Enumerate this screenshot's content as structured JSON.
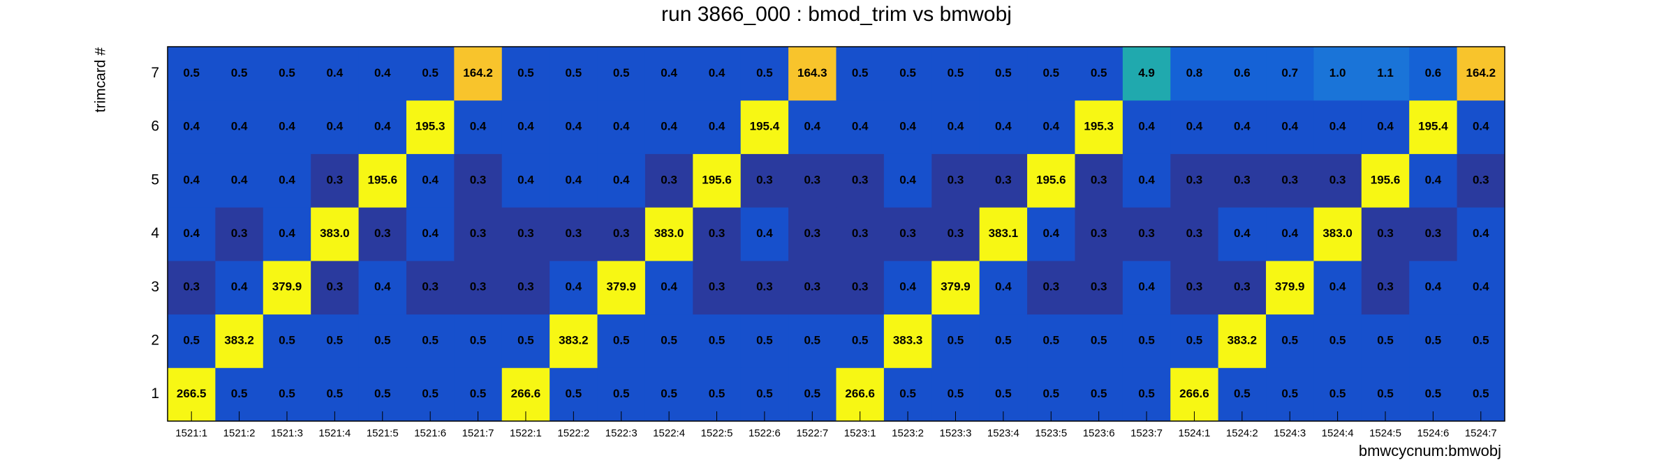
{
  "chart_data": {
    "type": "heatmap",
    "title": "run 3866_000 : bmod_trim vs bmwobj",
    "x_label": "bmwcycnum:bmwobj",
    "y_label": "trimcard #",
    "log_color": true,
    "colorscale": [
      [
        0,
        "#2a3a9e"
      ],
      [
        0.03,
        "#1750cc"
      ],
      [
        0.09,
        "#1562d6"
      ],
      [
        0.15,
        "#1a74d8"
      ],
      [
        0.3,
        "#20a9ae"
      ],
      [
        0.8,
        "#f8c42c"
      ],
      [
        0.89,
        "#f7f714"
      ]
    ],
    "categories": [
      "1521:1",
      "1521:2",
      "1521:3",
      "1521:4",
      "1521:5",
      "1521:6",
      "1521:7",
      "1522:1",
      "1522:2",
      "1522:3",
      "1522:4",
      "1522:5",
      "1522:6",
      "1522:7",
      "1523:1",
      "1523:2",
      "1523:3",
      "1523:4",
      "1523:5",
      "1523:6",
      "1523:7",
      "1524:1",
      "1524:2",
      "1524:3",
      "1524:4",
      "1524:5",
      "1524:6",
      "1524:7"
    ],
    "series": [
      {
        "name": "1",
        "values": [
          266.5,
          0.5,
          0.5,
          0.5,
          0.5,
          0.5,
          0.5,
          266.6,
          0.5,
          0.5,
          0.5,
          0.5,
          0.5,
          0.5,
          266.6,
          0.5,
          0.5,
          0.5,
          0.5,
          0.5,
          0.5,
          266.6,
          0.5,
          0.5,
          0.5,
          0.5,
          0.5,
          0.5
        ]
      },
      {
        "name": "2",
        "values": [
          0.5,
          383.2,
          0.5,
          0.5,
          0.5,
          0.5,
          0.5,
          0.5,
          383.2,
          0.5,
          0.5,
          0.5,
          0.5,
          0.5,
          0.5,
          383.3,
          0.5,
          0.5,
          0.5,
          0.5,
          0.5,
          0.5,
          383.2,
          0.5,
          0.5,
          0.5,
          0.5,
          0.5
        ]
      },
      {
        "name": "3",
        "values": [
          0.3,
          0.4,
          379.9,
          0.3,
          0.4,
          0.3,
          0.3,
          0.3,
          0.4,
          379.9,
          0.4,
          0.3,
          0.3,
          0.3,
          0.3,
          0.4,
          379.9,
          0.4,
          0.3,
          0.3,
          0.4,
          0.3,
          0.3,
          379.9,
          0.4,
          0.3,
          0.4,
          0.4
        ]
      },
      {
        "name": "4",
        "values": [
          0.4,
          0.3,
          0.4,
          383,
          0.3,
          0.4,
          0.3,
          0.3,
          0.3,
          0.3,
          383,
          0.3,
          0.4,
          0.3,
          0.3,
          0.3,
          0.3,
          383.1,
          0.4,
          0.3,
          0.3,
          0.3,
          0.4,
          0.4,
          383,
          0.3,
          0.3,
          0.4
        ],
        "value_labels": [
          "0.4",
          "0.3",
          "0.4",
          "383.0",
          "0.3",
          "0.4",
          "0.3",
          "0.3",
          "0.3",
          "0.3",
          "383.0",
          "0.3",
          "0.4",
          "0.3",
          "0.3",
          "0.3",
          "0.3",
          "383.1",
          "0.4",
          "0.3",
          "0.3",
          "0.3",
          "0.4",
          "0.4",
          "383.0",
          "0.3",
          "0.3",
          "0.4"
        ]
      },
      {
        "name": "5",
        "values": [
          0.4,
          0.4,
          0.4,
          0.3,
          195.6,
          0.4,
          0.3,
          0.4,
          0.4,
          0.4,
          0.3,
          195.6,
          0.3,
          0.3,
          0.3,
          0.4,
          0.3,
          0.3,
          195.6,
          0.3,
          0.4,
          0.3,
          0.3,
          0.3,
          0.3,
          195.6,
          0.4,
          0.3
        ]
      },
      {
        "name": "6",
        "values": [
          0.4,
          0.4,
          0.4,
          0.4,
          0.4,
          195.3,
          0.4,
          0.4,
          0.4,
          0.4,
          0.4,
          0.4,
          195.4,
          0.4,
          0.4,
          0.4,
          0.4,
          0.4,
          0.4,
          195.3,
          0.4,
          0.4,
          0.4,
          0.4,
          0.4,
          0.4,
          195.4,
          0.4
        ]
      },
      {
        "name": "7",
        "values": [
          0.5,
          0.5,
          0.5,
          0.4,
          0.4,
          0.5,
          164.2,
          0.5,
          0.5,
          0.5,
          0.4,
          0.4,
          0.5,
          164.3,
          0.5,
          0.5,
          0.5,
          0.5,
          0.5,
          0.5,
          4.9,
          0.8,
          0.6,
          0.7,
          1,
          1.1,
          0.6,
          164.2
        ],
        "value_labels": [
          "0.5",
          "0.5",
          "0.5",
          "0.4",
          "0.4",
          "0.5",
          "164.2",
          "0.5",
          "0.5",
          "0.5",
          "0.4",
          "0.4",
          "0.5",
          "164.3",
          "0.5",
          "0.5",
          "0.5",
          "0.5",
          "0.5",
          "0.5",
          "4.9",
          "0.8",
          "0.6",
          "0.7",
          "1.0",
          "1.1",
          "0.6",
          "164.2"
        ]
      }
    ]
  }
}
